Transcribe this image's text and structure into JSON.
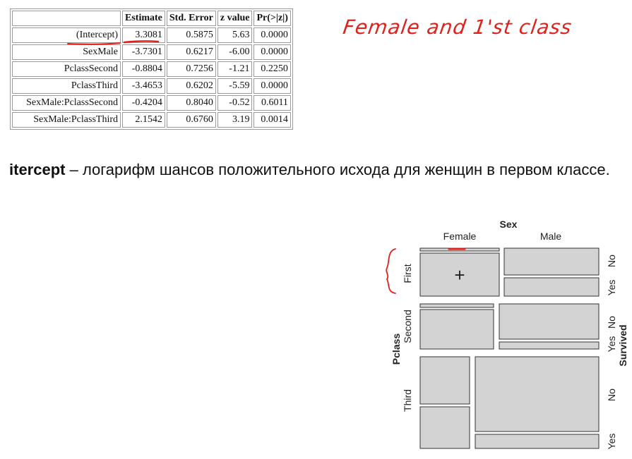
{
  "table": {
    "headers": [
      "",
      "Estimate",
      "Std. Error",
      "z value",
      "Pr(>|z|)"
    ],
    "rows": [
      {
        "term": "(Intercept)",
        "estimate": "3.3081",
        "se": "0.5875",
        "z": "5.63",
        "p": "0.0000"
      },
      {
        "term": "SexMale",
        "estimate": "-3.7301",
        "se": "0.6217",
        "z": "-6.00",
        "p": "0.0000"
      },
      {
        "term": "PclassSecond",
        "estimate": "-0.8804",
        "se": "0.7256",
        "z": "-1.21",
        "p": "0.2250"
      },
      {
        "term": "PclassThird",
        "estimate": "-3.4653",
        "se": "0.6202",
        "z": "-5.59",
        "p": "0.0000"
      },
      {
        "term": "SexMale:PclassSecond",
        "estimate": "-0.4204",
        "se": "0.8040",
        "z": "-0.52",
        "p": "0.6011"
      },
      {
        "term": "SexMale:PclassThird",
        "estimate": "2.1542",
        "se": "0.6760",
        "z": "3.19",
        "p": "0.0014"
      }
    ]
  },
  "handwritten_note": "Female and 1'st class",
  "handwritten_plus": "+",
  "paragraph": {
    "term": "itercept",
    "text": " – логарифм шансов положительного исхода для женщин в первом классе."
  },
  "mosaic": {
    "title_top": "Sex",
    "sex_levels": [
      "Female",
      "Male"
    ],
    "title_left": "Pclass",
    "class_levels": [
      "First",
      "Second",
      "Third"
    ],
    "title_right": "Survived",
    "survived_levels": [
      "No",
      "Yes"
    ],
    "colors": {
      "fill": "#d3d3d3",
      "stroke": "#333333",
      "annotation": "#e0211b"
    }
  }
}
